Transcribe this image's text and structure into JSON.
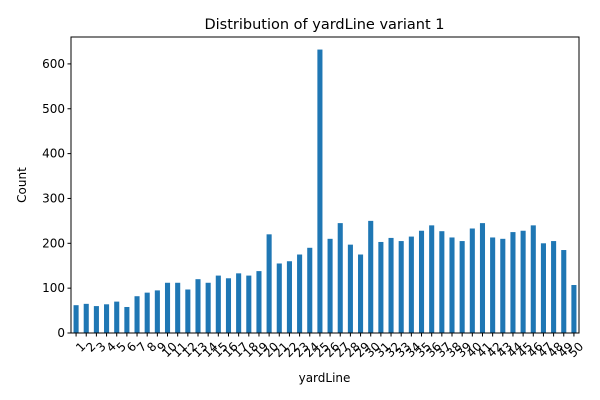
{
  "chart_data": {
    "type": "bar",
    "title": "Distribution of yardLine variant 1",
    "xlabel": "yardLine",
    "ylabel": "Count",
    "ylim": [
      0,
      660
    ],
    "yticks": [
      0,
      100,
      200,
      300,
      400,
      500,
      600
    ],
    "bar_color": "#1f77b4",
    "grid": false,
    "legend": "none",
    "categories": [
      "1",
      "2",
      "3",
      "4",
      "5",
      "6",
      "7",
      "8",
      "9",
      "10",
      "11",
      "12",
      "13",
      "14",
      "15",
      "16",
      "17",
      "18",
      "19",
      "20",
      "21",
      "22",
      "23",
      "24",
      "25",
      "26",
      "27",
      "28",
      "29",
      "30",
      "31",
      "32",
      "33",
      "34",
      "35",
      "36",
      "37",
      "38",
      "39",
      "40",
      "41",
      "42",
      "43",
      "44",
      "45",
      "46",
      "47",
      "48",
      "49",
      "50"
    ],
    "values": [
      62,
      65,
      60,
      64,
      70,
      58,
      82,
      90,
      95,
      112,
      112,
      97,
      120,
      112,
      128,
      122,
      133,
      128,
      138,
      220,
      155,
      160,
      175,
      190,
      632,
      210,
      245,
      197,
      175,
      250,
      203,
      212,
      205,
      215,
      228,
      240,
      227,
      213,
      205,
      233,
      245,
      213,
      210,
      225,
      228,
      240,
      200,
      205,
      185,
      107
    ]
  }
}
